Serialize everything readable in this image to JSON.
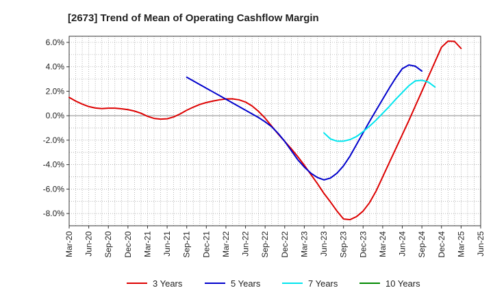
{
  "chart_data": {
    "type": "line",
    "title": "[2673]  Trend of Mean of Operating Cashflow Margin",
    "xlabel": "",
    "ylabel": "",
    "x_ticks": [
      "Mar-20",
      "Jun-20",
      "Sep-20",
      "Dec-20",
      "Mar-21",
      "Jun-21",
      "Sep-21",
      "Dec-21",
      "Mar-22",
      "Jun-22",
      "Sep-22",
      "Dec-22",
      "Mar-23",
      "Jun-23",
      "Sep-23",
      "Dec-23",
      "Mar-24",
      "Jun-24",
      "Sep-24",
      "Dec-24",
      "Mar-25",
      "Jun-25"
    ],
    "y_ticks": [
      "6.0%",
      "4.0%",
      "2.0%",
      "0.0%",
      "-2.0%",
      "-4.0%",
      "-6.0%",
      "-8.0%"
    ],
    "y_tick_values": [
      6,
      4,
      2,
      0,
      -2,
      -4,
      -6,
      -8
    ],
    "ylim": [
      -9,
      6.5
    ],
    "grid": true,
    "legend_position": "bottom",
    "series": [
      {
        "name": "3 Years",
        "color": "#dd0000",
        "start_index": 0,
        "values": [
          1.5,
          1.2,
          0.95,
          0.75,
          0.63,
          0.58,
          0.62,
          0.62,
          0.57,
          0.5,
          0.38,
          0.2,
          -0.05,
          -0.22,
          -0.28,
          -0.25,
          -0.1,
          0.15,
          0.45,
          0.7,
          0.92,
          1.08,
          1.2,
          1.3,
          1.37,
          1.38,
          1.3,
          1.12,
          0.8,
          0.35,
          -0.2,
          -0.85,
          -1.5,
          -2.1,
          -2.7,
          -3.35,
          -4.05,
          -4.8,
          -5.55,
          -6.35,
          -7.05,
          -7.8,
          -8.45,
          -8.5,
          -8.25,
          -7.8,
          -7.1,
          -6.15,
          -5.0,
          -3.85,
          -2.7,
          -1.55,
          -0.4,
          0.8,
          2.0,
          3.2,
          4.4,
          5.6,
          6.1,
          6.08,
          5.5
        ]
      },
      {
        "name": "5 Years",
        "color": "#0000cc",
        "start_index": 18,
        "values": [
          3.15,
          2.85,
          2.55,
          2.25,
          1.95,
          1.65,
          1.35,
          1.05,
          0.75,
          0.45,
          0.15,
          -0.15,
          -0.5,
          -0.9,
          -1.45,
          -2.1,
          -2.85,
          -3.6,
          -4.2,
          -4.7,
          -5.05,
          -5.25,
          -5.1,
          -4.7,
          -4.1,
          -3.3,
          -2.35,
          -1.4,
          -0.45,
          0.45,
          1.35,
          2.25,
          3.1,
          3.85,
          4.15,
          4.05,
          3.65
        ]
      },
      {
        "name": "7 Years",
        "color": "#00e5ee",
        "start_index": 39,
        "values": [
          -1.4,
          -1.9,
          -2.08,
          -2.08,
          -1.95,
          -1.7,
          -1.3,
          -0.85,
          -0.35,
          0.2,
          0.75,
          1.35,
          1.9,
          2.45,
          2.85,
          2.9,
          2.75,
          2.35
        ]
      },
      {
        "name": "10 Years",
        "color": "#008800",
        "start_index": 0,
        "values": []
      }
    ]
  }
}
